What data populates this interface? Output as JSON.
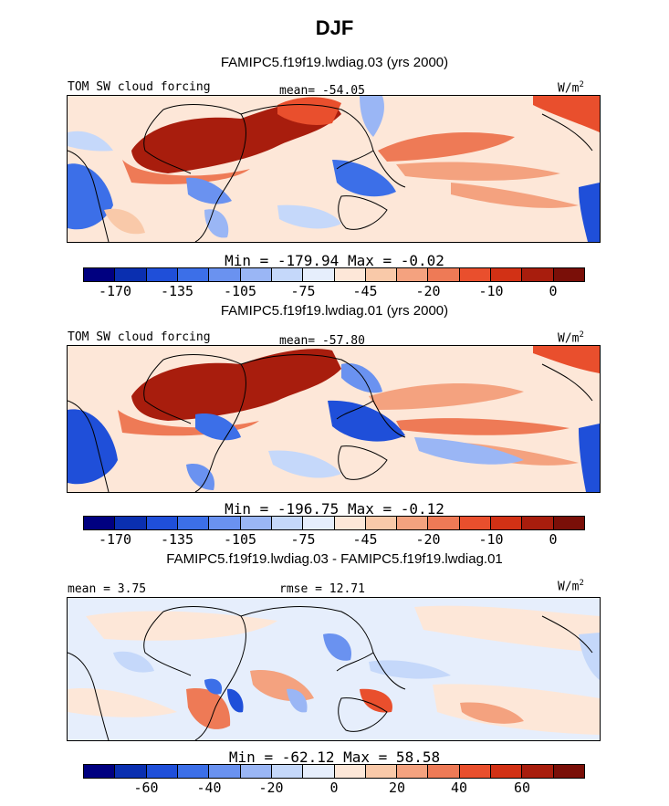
{
  "title": "DJF",
  "colors": {
    "scale": [
      "#000080",
      "#0a2fb0",
      "#1f4fd9",
      "#3c6fe8",
      "#6a92f0",
      "#9ab6f5",
      "#c5d8fa",
      "#e6eefc",
      "#fde7d8",
      "#f9c9a9",
      "#f4a27f",
      "#ee7a56",
      "#e94f2d",
      "#d23115",
      "#a81d0d",
      "#7a0f08"
    ]
  },
  "panels": [
    {
      "subtitle": "FAMIPC5.f19f19.lwdiag.03 (yrs 2000)",
      "left_label": "TOM SW cloud forcing",
      "center_label": "mean= -54.05",
      "units": "W/m",
      "units_sup": "2",
      "stats": "Min = -179.94 Max =  -0.02"
    },
    {
      "subtitle": "FAMIPC5.f19f19.lwdiag.01 (yrs 2000)",
      "left_label": "TOM SW cloud forcing",
      "center_label": "mean= -57.80",
      "units": "W/m",
      "units_sup": "2",
      "stats": "Min = -196.75 Max =  -0.12"
    },
    {
      "subtitle": "FAMIPC5.f19f19.lwdiag.03 - FAMIPC5.f19f19.lwdiag.01",
      "left_label": "mean =   3.75",
      "center_label": "rmse =  12.71",
      "units": "W/m",
      "units_sup": "2",
      "stats": "Min = -62.12 Max =  58.58"
    }
  ],
  "chart_data": [
    {
      "type": "heatmap",
      "title": "FAMIPC5.f19f19.lwdiag.03 (yrs 2000)",
      "field": "TOM SW cloud forcing",
      "units": "W/m^2",
      "mean": -54.05,
      "min": -179.94,
      "max": -0.02,
      "colorbar_ticks": [
        "-170",
        "-135",
        "-105",
        "-75",
        "-45",
        "-20",
        "-10",
        "0"
      ]
    },
    {
      "type": "heatmap",
      "title": "FAMIPC5.f19f19.lwdiag.01 (yrs 2000)",
      "field": "TOM SW cloud forcing",
      "units": "W/m^2",
      "mean": -57.8,
      "min": -196.75,
      "max": -0.12,
      "colorbar_ticks": [
        "-170",
        "-135",
        "-105",
        "-75",
        "-45",
        "-20",
        "-10",
        "0"
      ]
    },
    {
      "type": "heatmap",
      "title": "FAMIPC5.f19f19.lwdiag.03 - FAMIPC5.f19f19.lwdiag.01",
      "units": "W/m^2",
      "mean": 3.75,
      "rmse": 12.71,
      "min": -62.12,
      "max": 58.58,
      "colorbar_ticks": [
        "-60",
        "-40",
        "-20",
        "0",
        "20",
        "40",
        "60"
      ]
    }
  ]
}
